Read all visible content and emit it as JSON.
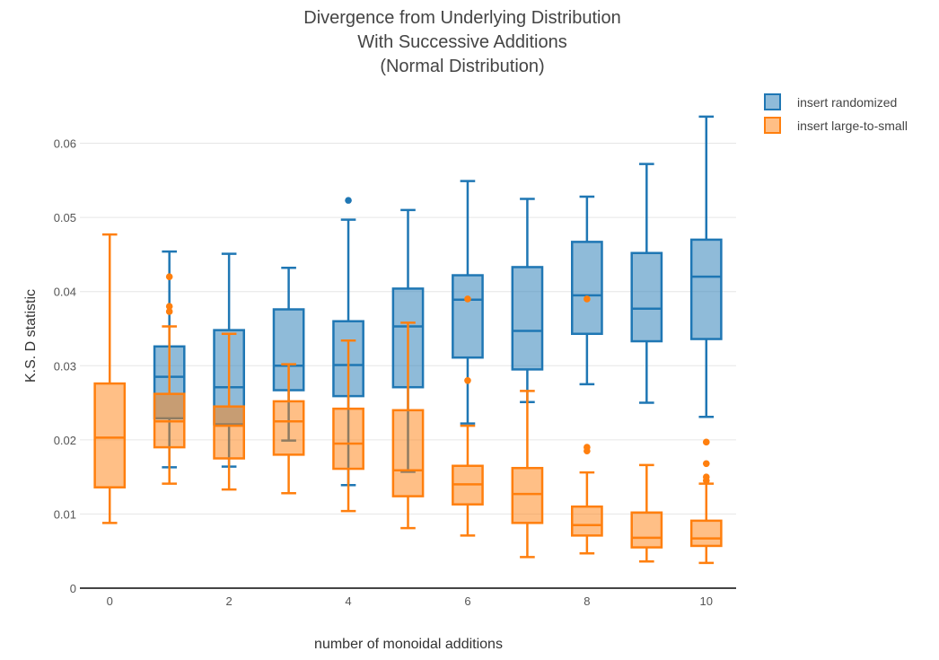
{
  "chart_data": {
    "type": "box",
    "title_lines": [
      "Divergence from Underlying Distribution",
      "With Successive Additions",
      "(Normal Distribution)"
    ],
    "xlabel": "number of monoidal additions",
    "ylabel": "K.S. D statistic",
    "xlim": [
      -0.5,
      10.5
    ],
    "ylim": [
      0,
      0.066
    ],
    "x_ticks": [
      0,
      2,
      4,
      6,
      8,
      10
    ],
    "x_tick_labels": [
      "0",
      "2",
      "4",
      "6",
      "8",
      "10"
    ],
    "y_ticks": [
      0,
      0.01,
      0.02,
      0.03,
      0.04,
      0.05,
      0.06
    ],
    "y_tick_labels": [
      "0",
      "0.01",
      "0.02",
      "0.03",
      "0.04",
      "0.05",
      "0.06"
    ],
    "grid": true,
    "legend_position": "top-right",
    "series": [
      {
        "name": "insert randomized",
        "color": "#1f77b4",
        "boxes": [
          {
            "x": 1,
            "lower_whisker": 0.0163,
            "q1": 0.0229,
            "median": 0.0285,
            "q3": 0.0326,
            "upper_whisker": 0.0454,
            "outliers": []
          },
          {
            "x": 2,
            "lower_whisker": 0.0164,
            "q1": 0.0221,
            "median": 0.0271,
            "q3": 0.0348,
            "upper_whisker": 0.0451,
            "outliers": []
          },
          {
            "x": 3,
            "lower_whisker": 0.0199,
            "q1": 0.0267,
            "median": 0.03,
            "q3": 0.0376,
            "upper_whisker": 0.0432,
            "outliers": []
          },
          {
            "x": 4,
            "lower_whisker": 0.0139,
            "q1": 0.0259,
            "median": 0.0301,
            "q3": 0.036,
            "upper_whisker": 0.0497,
            "outliers": [
              0.0523
            ]
          },
          {
            "x": 5,
            "lower_whisker": 0.0157,
            "q1": 0.0271,
            "median": 0.0353,
            "q3": 0.0404,
            "upper_whisker": 0.051,
            "outliers": []
          },
          {
            "x": 6,
            "lower_whisker": 0.0222,
            "q1": 0.0311,
            "median": 0.0389,
            "q3": 0.0422,
            "upper_whisker": 0.0549,
            "outliers": []
          },
          {
            "x": 7,
            "lower_whisker": 0.0251,
            "q1": 0.0295,
            "median": 0.0347,
            "q3": 0.0433,
            "upper_whisker": 0.0525,
            "outliers": []
          },
          {
            "x": 8,
            "lower_whisker": 0.0275,
            "q1": 0.0343,
            "median": 0.0395,
            "q3": 0.0467,
            "upper_whisker": 0.0528,
            "outliers": []
          },
          {
            "x": 9,
            "lower_whisker": 0.025,
            "q1": 0.0333,
            "median": 0.0377,
            "q3": 0.0452,
            "upper_whisker": 0.0572,
            "outliers": []
          },
          {
            "x": 10,
            "lower_whisker": 0.0231,
            "q1": 0.0336,
            "median": 0.042,
            "q3": 0.047,
            "upper_whisker": 0.0636,
            "outliers": []
          }
        ]
      },
      {
        "name": "insert large-to-small",
        "color": "#ff7f0e",
        "boxes": [
          {
            "x": 0,
            "lower_whisker": 0.0088,
            "q1": 0.0136,
            "median": 0.0203,
            "q3": 0.0276,
            "upper_whisker": 0.0477,
            "outliers": []
          },
          {
            "x": 1,
            "lower_whisker": 0.0141,
            "q1": 0.019,
            "median": 0.0225,
            "q3": 0.0262,
            "upper_whisker": 0.0353,
            "outliers": [
              0.0373,
              0.038,
              0.042
            ]
          },
          {
            "x": 2,
            "lower_whisker": 0.0133,
            "q1": 0.0175,
            "median": 0.0219,
            "q3": 0.0245,
            "upper_whisker": 0.0343,
            "outliers": []
          },
          {
            "x": 3,
            "lower_whisker": 0.0128,
            "q1": 0.018,
            "median": 0.0225,
            "q3": 0.0252,
            "upper_whisker": 0.0302,
            "outliers": []
          },
          {
            "x": 4,
            "lower_whisker": 0.0104,
            "q1": 0.0161,
            "median": 0.0195,
            "q3": 0.0242,
            "upper_whisker": 0.0334,
            "outliers": []
          },
          {
            "x": 5,
            "lower_whisker": 0.0081,
            "q1": 0.0124,
            "median": 0.0159,
            "q3": 0.024,
            "upper_whisker": 0.0358,
            "outliers": []
          },
          {
            "x": 6,
            "lower_whisker": 0.0071,
            "q1": 0.0113,
            "median": 0.014,
            "q3": 0.0165,
            "upper_whisker": 0.0219,
            "outliers": [
              0.028,
              0.039
            ]
          },
          {
            "x": 7,
            "lower_whisker": 0.0042,
            "q1": 0.0088,
            "median": 0.0127,
            "q3": 0.0162,
            "upper_whisker": 0.0266,
            "outliers": []
          },
          {
            "x": 8,
            "lower_whisker": 0.0047,
            "q1": 0.0071,
            "median": 0.0085,
            "q3": 0.011,
            "upper_whisker": 0.0156,
            "outliers": [
              0.0185,
              0.019,
              0.039
            ]
          },
          {
            "x": 9,
            "lower_whisker": 0.0036,
            "q1": 0.0055,
            "median": 0.0068,
            "q3": 0.0102,
            "upper_whisker": 0.0166,
            "outliers": []
          },
          {
            "x": 10,
            "lower_whisker": 0.0034,
            "q1": 0.0057,
            "median": 0.0067,
            "q3": 0.0091,
            "upper_whisker": 0.0141,
            "outliers": [
              0.0145,
              0.015,
              0.0168,
              0.0197
            ]
          }
        ]
      }
    ]
  }
}
